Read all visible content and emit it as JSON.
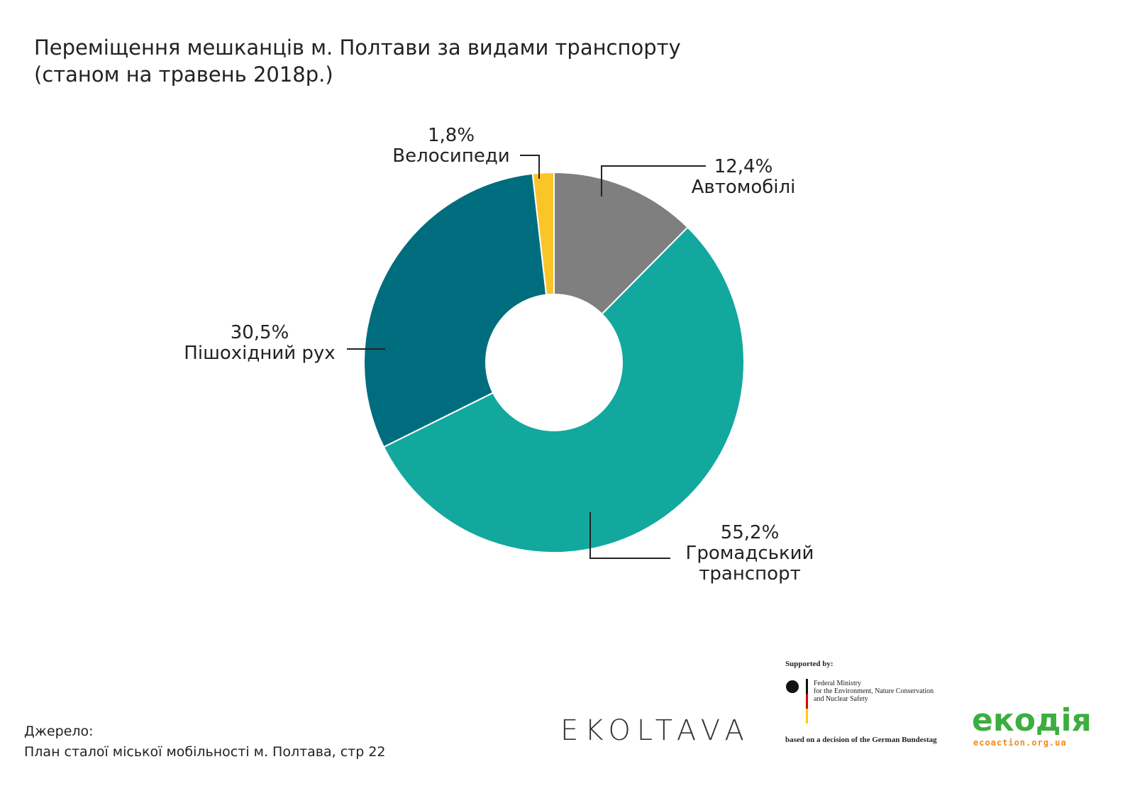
{
  "chart_data": {
    "type": "donut",
    "title": "Переміщення мешканців м. Полтави за видами транспорту",
    "subtitle": "(станом на травень 2018р.)",
    "categories": [
      "Автомобілі",
      "Громадський транспорт",
      "Пішохідний рух",
      "Велосипеди"
    ],
    "values": [
      12.4,
      55.2,
      30.5,
      1.8
    ],
    "value_labels": [
      "12,4%",
      "55,2%",
      "30,5%",
      "1,8%"
    ],
    "colors": [
      "#7f7f7f",
      "#13a89e",
      "#006d7e",
      "#fbc527"
    ],
    "source_label": "Джерело:",
    "source": "План сталої міської мобільності м. Полтава, стр 22"
  },
  "logos": {
    "ekoltava": "EKOLTAVA",
    "supported_by": "Supported by:",
    "ministry": [
      "Federal Ministry",
      "for the Environment, Nature Conservation",
      "and Nuclear Safety"
    ],
    "bundestag": "based on a decision of the German Bundestag",
    "ekodiya": "екодія",
    "ekodiya_url": "ecoaction.org.ua"
  }
}
